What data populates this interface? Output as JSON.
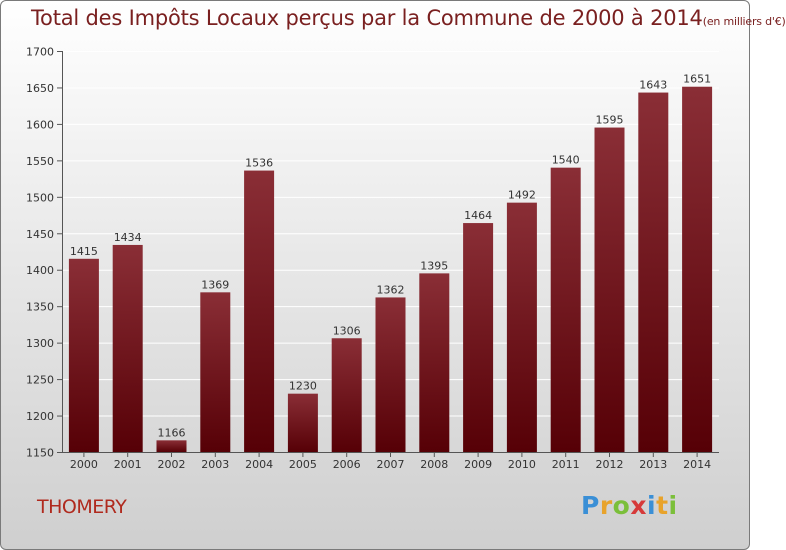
{
  "header": {
    "title": "Total des Impôts Locaux perçus par la Commune de 2000 à 2014",
    "unit": "(en milliers d'€)"
  },
  "footer": {
    "commune": "THOMERY",
    "brand": [
      "P",
      "r",
      "o",
      "x",
      "i",
      "t",
      "i"
    ],
    "brand_colors": [
      "#3a8fd6",
      "#e8a32b",
      "#7bbf3a",
      "#d63a3a",
      "#3a8fd6",
      "#e8a32b",
      "#7bbf3a"
    ]
  },
  "chart_data": {
    "type": "bar",
    "title": "Total des Impôts Locaux perçus par la Commune de 2000 à 2014 (en milliers d'€)",
    "categories": [
      "2000",
      "2001",
      "2002",
      "2003",
      "2004",
      "2005",
      "2006",
      "2007",
      "2008",
      "2009",
      "2010",
      "2011",
      "2012",
      "2013",
      "2014"
    ],
    "values": [
      1415,
      1434,
      1166,
      1369,
      1536,
      1230,
      1306,
      1362,
      1395,
      1464,
      1492,
      1540,
      1595,
      1643,
      1651
    ],
    "ylim": [
      1150,
      1700
    ],
    "yticks": [
      1150,
      1200,
      1250,
      1300,
      1350,
      1400,
      1450,
      1500,
      1550,
      1600,
      1650,
      1700
    ],
    "xlabel": "",
    "ylabel": "",
    "bar_color_top": "#8a2e36",
    "bar_color_bottom": "#560006"
  }
}
